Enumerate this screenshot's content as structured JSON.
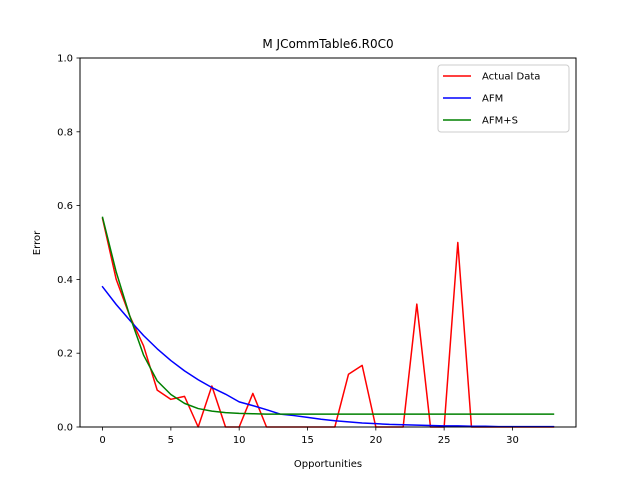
{
  "chart_data": {
    "type": "line",
    "title": "M  JCommTable6.R0C0",
    "xlabel": "Opportunities",
    "ylabel": "Error",
    "xlim": [
      -1.65,
      34.65
    ],
    "ylim": [
      0,
      1.0
    ],
    "xticks": [
      0,
      5,
      10,
      15,
      20,
      25,
      30
    ],
    "yticks": [
      0.0,
      0.2,
      0.4,
      0.6,
      0.8,
      1.0
    ],
    "xtick_labels": [
      "0",
      "5",
      "10",
      "15",
      "20",
      "25",
      "30"
    ],
    "ytick_labels": [
      "0.0",
      "0.2",
      "0.4",
      "0.6",
      "0.8",
      "1.0"
    ],
    "grid": false,
    "legend_position": "top-right",
    "x": [
      0,
      1,
      2,
      3,
      4,
      5,
      6,
      7,
      8,
      9,
      10,
      11,
      12,
      13,
      14,
      15,
      16,
      17,
      18,
      19,
      20,
      21,
      22,
      23,
      24,
      25,
      26,
      27,
      28,
      29,
      30,
      31,
      32,
      33
    ],
    "series": [
      {
        "name": "Actual Data",
        "color": "#ff0000",
        "values": [
          0.565,
          0.4,
          0.3,
          0.22,
          0.1,
          0.075,
          0.083,
          0.0,
          0.111,
          0.0,
          0.0,
          0.091,
          0.0,
          0.0,
          0.0,
          0.0,
          0.0,
          0.0,
          0.143,
          0.167,
          0.0,
          0.0,
          0.0,
          0.333,
          0.0,
          0.0,
          0.5,
          0.0,
          0.0,
          0.0,
          0.0,
          0.0,
          0.0,
          0.0
        ]
      },
      {
        "name": "AFM",
        "color": "#0000ff",
        "values": [
          0.38,
          0.332,
          0.289,
          0.248,
          0.212,
          0.18,
          0.152,
          0.128,
          0.107,
          0.089,
          0.068,
          0.058,
          0.047,
          0.035,
          0.031,
          0.026,
          0.021,
          0.017,
          0.014,
          0.011,
          0.009,
          0.007,
          0.006,
          0.005,
          0.004,
          0.003,
          0.003,
          0.002,
          0.002,
          0.001,
          0.001,
          0.001,
          0.001,
          0.001
        ]
      },
      {
        "name": "AFM+S",
        "color": "#008000",
        "values": [
          0.568,
          0.42,
          0.3,
          0.195,
          0.125,
          0.088,
          0.064,
          0.05,
          0.043,
          0.039,
          0.037,
          0.036,
          0.035,
          0.035,
          0.035,
          0.035,
          0.035,
          0.035,
          0.035,
          0.035,
          0.035,
          0.035,
          0.035,
          0.035,
          0.035,
          0.035,
          0.035,
          0.035,
          0.035,
          0.035,
          0.035,
          0.035,
          0.035,
          0.035
        ]
      }
    ]
  }
}
